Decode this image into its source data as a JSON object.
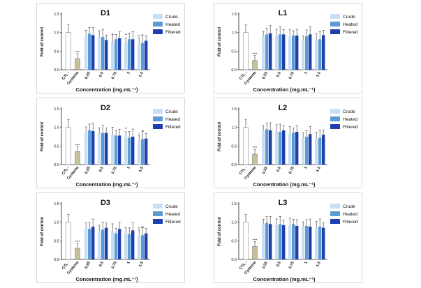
{
  "colors": {
    "crude": "#c9ddf4",
    "heated": "#5b9bd5",
    "filtered": "#1f3fae",
    "ctl": "#ffffff",
    "cysteine": "#c6c09b",
    "axis": "#222222"
  },
  "chart_data": [
    {
      "type": "bar",
      "title": "D1",
      "xlabel": "Concentration (mg.mL⁻¹)",
      "ylabel": "Fold of control",
      "ylim": [
        0,
        1.5
      ],
      "yticks": [
        "0.0",
        "0.5",
        "1.0",
        "1.5"
      ],
      "control": {
        "categories": [
          "CTL -",
          "Cysteine"
        ],
        "values": [
          1.0,
          0.3
        ],
        "sig": [
          "",
          "****"
        ]
      },
      "categories": [
        "0.25",
        "0.5",
        "0.75",
        "1",
        "1.5"
      ],
      "series": [
        {
          "name": "Crude",
          "values": [
            0.93,
            0.88,
            0.74,
            0.72,
            0.68
          ]
        },
        {
          "name": "Heated",
          "values": [
            0.97,
            0.88,
            0.82,
            0.82,
            0.72
          ]
        },
        {
          "name": "Filtered",
          "values": [
            0.93,
            0.8,
            0.85,
            0.82,
            0.78
          ]
        }
      ],
      "sig": [
        [
          "",
          "",
          ""
        ],
        [
          "",
          "",
          ""
        ],
        [
          "*",
          "",
          ""
        ],
        [
          "**",
          "",
          ""
        ],
        [
          "***",
          "*",
          ""
        ]
      ]
    },
    {
      "type": "bar",
      "title": "L1",
      "xlabel": "Concentration (mg.mL⁻¹)",
      "ylabel": "Fold of control",
      "ylim": [
        0,
        1.5
      ],
      "yticks": [
        "0.0",
        "0.5",
        "1.0",
        "1.5"
      ],
      "control": {
        "categories": [
          "CTL -",
          "Cysteine"
        ],
        "values": [
          1.0,
          0.25
        ],
        "sig": [
          "",
          "****"
        ]
      },
      "categories": [
        "0.25",
        "0.5",
        "0.75",
        "1",
        "1.5"
      ],
      "series": [
        {
          "name": "Crude",
          "values": [
            0.9,
            0.92,
            0.88,
            0.78,
            0.8
          ]
        },
        {
          "name": "Heated",
          "values": [
            0.95,
            0.95,
            0.92,
            0.9,
            0.82
          ]
        },
        {
          "name": "Filtered",
          "values": [
            0.98,
            0.95,
            0.92,
            0.95,
            0.93
          ]
        }
      ],
      "sig": [
        [
          "",
          "",
          ""
        ],
        [
          "",
          "",
          ""
        ],
        [
          "",
          "",
          ""
        ],
        [
          "",
          "",
          ""
        ],
        [
          "",
          "",
          ""
        ]
      ]
    },
    {
      "type": "bar",
      "title": "D2",
      "xlabel": "Concentration (mg.mL⁻¹)",
      "ylabel": "Fold of control",
      "ylim": [
        0,
        1.5
      ],
      "yticks": [
        "0.0",
        "0.5",
        "1.0",
        "1.5"
      ],
      "control": {
        "categories": [
          "CTL -",
          "Cysteine"
        ],
        "values": [
          1.0,
          0.35
        ],
        "sig": [
          "",
          "****"
        ]
      },
      "categories": [
        "0.25",
        "0.5",
        "0.75",
        "1",
        "1.5"
      ],
      "series": [
        {
          "name": "Crude",
          "values": [
            0.88,
            0.82,
            0.8,
            0.75,
            0.62
          ]
        },
        {
          "name": "Heated",
          "values": [
            0.92,
            0.85,
            0.78,
            0.72,
            0.68
          ]
        },
        {
          "name": "Filtered",
          "values": [
            0.9,
            0.85,
            0.78,
            0.75,
            0.7
          ]
        }
      ],
      "sig": [
        [
          "",
          "",
          ""
        ],
        [
          "",
          "",
          ""
        ],
        [
          "",
          "",
          ""
        ],
        [
          "**",
          "",
          ""
        ],
        [
          "*",
          "**",
          ""
        ]
      ]
    },
    {
      "type": "bar",
      "title": "L2",
      "xlabel": "Concentration (mg.mL⁻¹)",
      "ylabel": "Fold of control",
      "ylim": [
        0,
        1.5
      ],
      "yticks": [
        "0.0",
        "0.5",
        "1.0",
        "1.5"
      ],
      "control": {
        "categories": [
          "CTL -",
          "Cysteine"
        ],
        "values": [
          1.0,
          0.28
        ],
        "sig": [
          "",
          "****"
        ]
      },
      "categories": [
        "0.25",
        "0.5",
        "0.75",
        "1",
        "1.5"
      ],
      "series": [
        {
          "name": "Crude",
          "values": [
            0.92,
            0.9,
            0.82,
            0.72,
            0.7
          ]
        },
        {
          "name": "Heated",
          "values": [
            0.95,
            0.88,
            0.85,
            0.75,
            0.72
          ]
        },
        {
          "name": "Filtered",
          "values": [
            0.92,
            0.92,
            0.88,
            0.82,
            0.8
          ]
        }
      ],
      "sig": [
        [
          "",
          "",
          ""
        ],
        [
          "",
          "",
          ""
        ],
        [
          "",
          "",
          ""
        ],
        [
          "",
          "",
          ""
        ],
        [
          "",
          "",
          ""
        ]
      ]
    },
    {
      "type": "bar",
      "title": "D3",
      "xlabel": "Concentration (mg.mL⁻¹)",
      "ylabel": "Fold of control",
      "ylim": [
        0,
        1.5
      ],
      "yticks": [
        "0.0",
        "0.5",
        "1.0",
        "1.5"
      ],
      "control": {
        "categories": [
          "CTL -",
          "Cysteine"
        ],
        "values": [
          1.0,
          0.3
        ],
        "sig": [
          "",
          "****"
        ]
      },
      "categories": [
        "0.25",
        "0.5",
        "0.75",
        "1",
        "1.5"
      ],
      "series": [
        {
          "name": "Crude",
          "values": [
            0.85,
            0.75,
            0.75,
            0.72,
            0.62
          ]
        },
        {
          "name": "Heated",
          "values": [
            0.82,
            0.8,
            0.7,
            0.68,
            0.65
          ]
        },
        {
          "name": "Filtered",
          "values": [
            0.88,
            0.85,
            0.82,
            0.78,
            0.7
          ]
        }
      ],
      "sig": [
        [
          "",
          "",
          ""
        ],
        [
          "",
          "",
          ""
        ],
        [
          "",
          "",
          ""
        ],
        [
          "",
          "",
          ""
        ],
        [
          "**",
          "***",
          ""
        ]
      ]
    },
    {
      "type": "bar",
      "title": "L3",
      "xlabel": "Concentration (mg.mL⁻¹)",
      "ylabel": "Fold of control",
      "ylim": [
        0,
        1.5
      ],
      "yticks": [
        "0.0",
        "0.5",
        "1.0",
        "1.5"
      ],
      "control": {
        "categories": [
          "CTL -",
          "Cysteine"
        ],
        "values": [
          1.0,
          0.35
        ],
        "sig": [
          "",
          "****"
        ]
      },
      "categories": [
        "0.25",
        "0.5",
        "0.75",
        "1",
        "1.5"
      ],
      "series": [
        {
          "name": "Crude",
          "values": [
            0.95,
            0.92,
            0.9,
            0.88,
            0.85
          ]
        },
        {
          "name": "Heated",
          "values": [
            0.98,
            0.95,
            0.95,
            0.9,
            0.88
          ]
        },
        {
          "name": "Filtered",
          "values": [
            0.95,
            0.92,
            0.9,
            0.88,
            0.85
          ]
        }
      ],
      "sig": [
        [
          "",
          "",
          ""
        ],
        [
          "",
          "",
          ""
        ],
        [
          "",
          "",
          ""
        ],
        [
          "",
          "",
          ""
        ],
        [
          "",
          "",
          ""
        ]
      ]
    }
  ]
}
